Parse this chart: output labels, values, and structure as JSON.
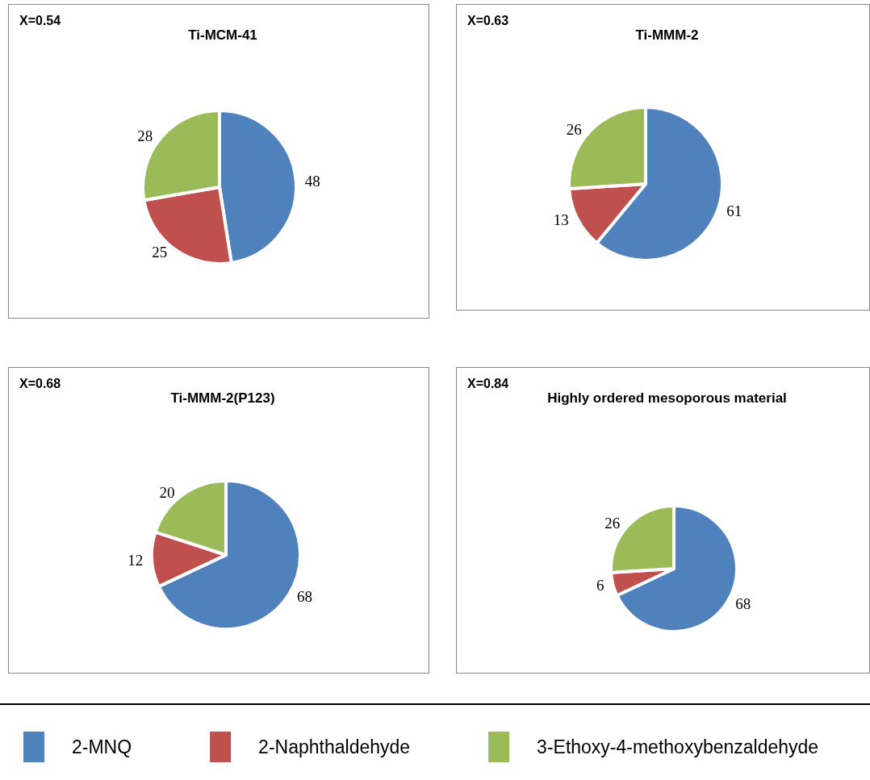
{
  "chart_data": {
    "type": "pie",
    "categories": [
      "2-MNQ",
      "2-Naphthaldehyde",
      "3-Ethoxy-4-methoxybenzaldehyde"
    ],
    "colors": [
      "#4f81bd",
      "#c0504d",
      "#9bbb59"
    ],
    "data_labels": true,
    "legend": "bottom",
    "annotations": [
      "X=0.54",
      "X=0.63",
      "X=0.68",
      "X=0.84"
    ],
    "series": [
      {
        "name": "Ti-MCM-41",
        "values": [
          48,
          25,
          28
        ]
      },
      {
        "name": "Ti-MMM-2",
        "values": [
          61,
          13,
          26
        ]
      },
      {
        "name": "Ti-MMM-2(P123)",
        "values": [
          68,
          12,
          20
        ]
      },
      {
        "name": "Highly ordered mesoporous material",
        "values": [
          68,
          6,
          26
        ]
      }
    ]
  }
}
